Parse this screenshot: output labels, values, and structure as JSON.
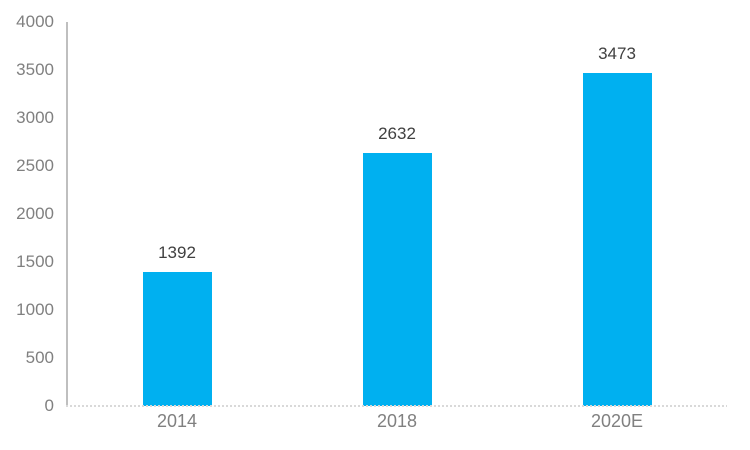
{
  "chart_data": {
    "type": "bar",
    "categories": [
      "2014",
      "2018",
      "2020E"
    ],
    "values": [
      1392,
      2632,
      3473
    ],
    "data_labels": [
      "1392",
      "2632",
      "3473"
    ],
    "title": "",
    "xlabel": "",
    "ylabel": "",
    "ylim": [
      0,
      4000
    ],
    "ytick_step": 500,
    "yticks": [
      0,
      500,
      1000,
      1500,
      2000,
      2500,
      3000,
      3500,
      4000
    ],
    "grid": "off",
    "legend": "none",
    "colors": {
      "bar": "#00b0f0",
      "axis_line": "#bfbfbf",
      "baseline": "#d9d9d9",
      "tick_label": "#808080",
      "data_label": "#404040",
      "background": "#ffffff"
    },
    "baseline_style": "dotted"
  }
}
